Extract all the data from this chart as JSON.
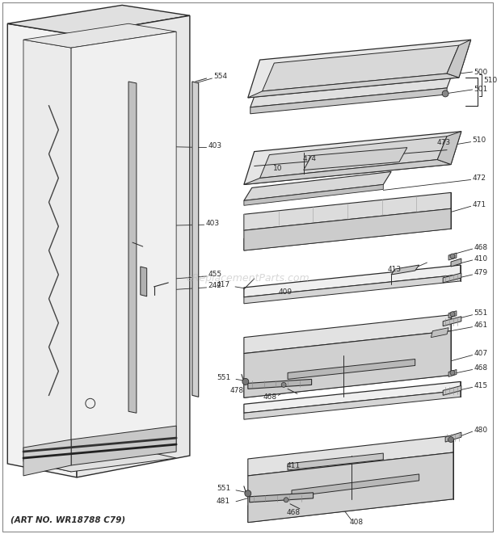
{
  "bg_color": "#ffffff",
  "line_color": "#2a2a2a",
  "text_color": "#2a2a2a",
  "watermark": "eReplacementParts.com",
  "footer": "(ART NO. WR18788 C79)",
  "figsize": [
    6.2,
    6.61
  ],
  "dpi": 100
}
